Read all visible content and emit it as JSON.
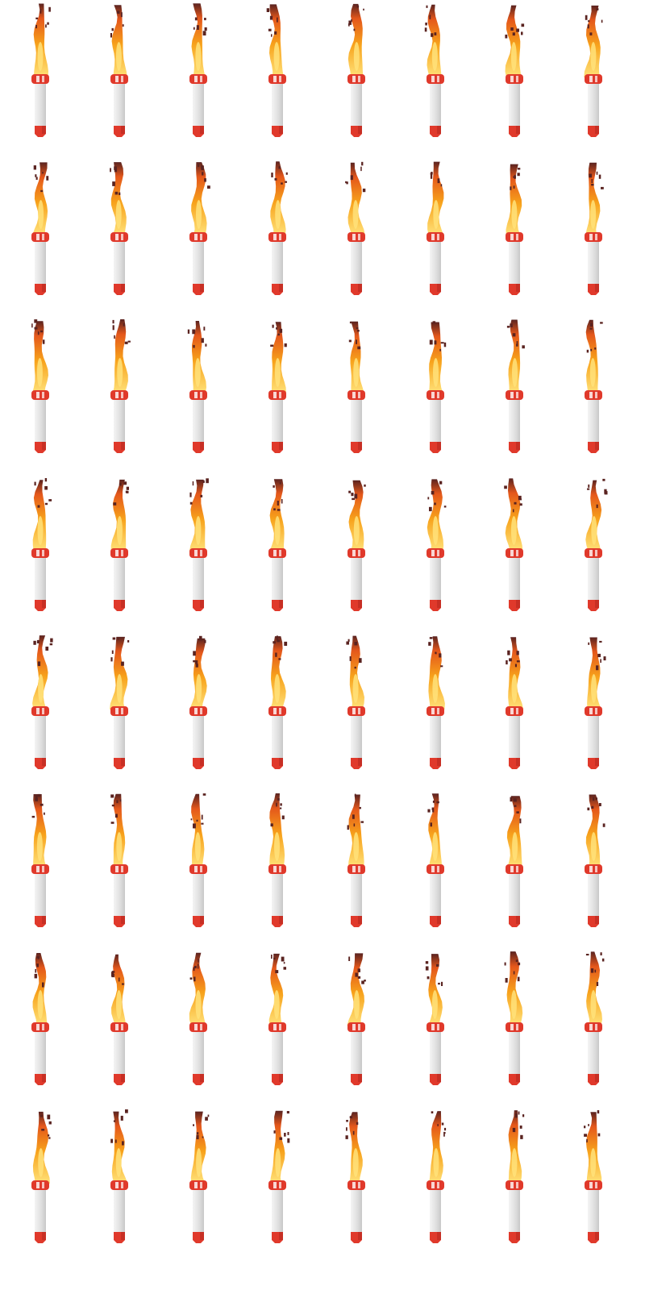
{
  "sprite_sheet": {
    "columns": 8,
    "rows": 8,
    "subject": "rocket-flame-icon",
    "colors": {
      "background": "#ffffff",
      "body_light": "#f4f4f4",
      "body_mid": "#dedede",
      "body_dark": "#c8c8c8",
      "nozzle_red": "#e0392b",
      "nozzle_dark": "#b52a1f",
      "flame_core": "#ffe27a",
      "flame_mid": "#f7a21b",
      "flame_outer": "#e4571b",
      "flame_tip": "#5a2320"
    }
  }
}
